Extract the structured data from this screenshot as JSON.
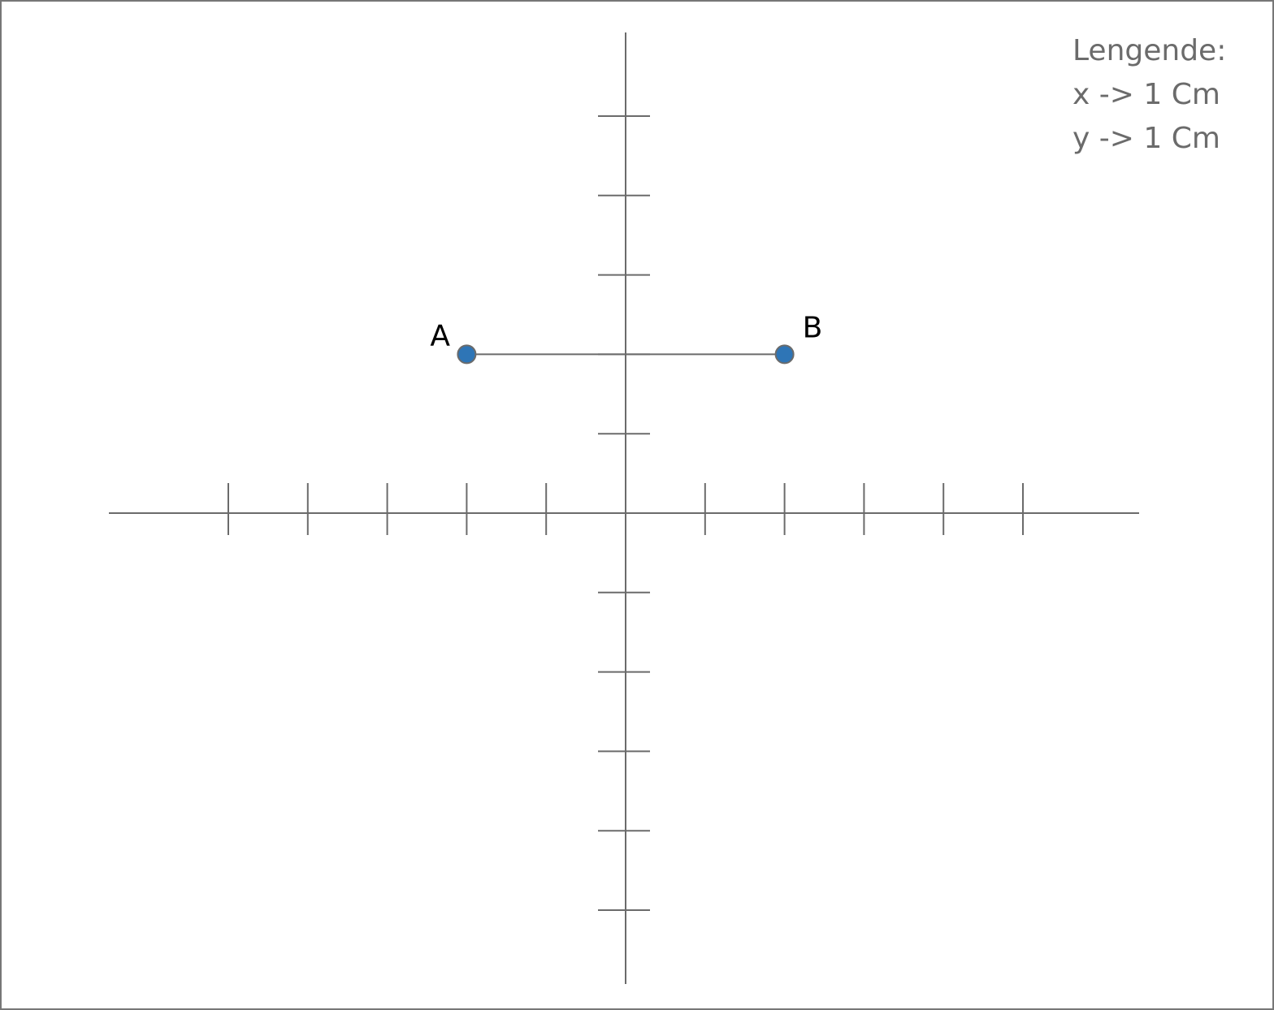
{
  "legend": {
    "title": "Lengende:",
    "x_scale": "x -> 1 Cm",
    "y_scale": "y -> 1 Cm"
  },
  "axes": {
    "x_ticks": [
      -5,
      -4,
      -3,
      -2,
      -1,
      1,
      2,
      3,
      4,
      5
    ],
    "y_ticks": [
      -5,
      -4,
      -3,
      -2,
      -1,
      1,
      2,
      3,
      4,
      5
    ]
  },
  "points": [
    {
      "label": "A",
      "x": -2,
      "y": 2
    },
    {
      "label": "B",
      "x": 2,
      "y": 2
    }
  ],
  "segments": [
    {
      "from": "A",
      "to": "B"
    }
  ],
  "colors": {
    "axis": "#6b6b6b",
    "point_fill": "#2e75b6",
    "label": "#000000",
    "legend_text": "#6b6b6b"
  }
}
